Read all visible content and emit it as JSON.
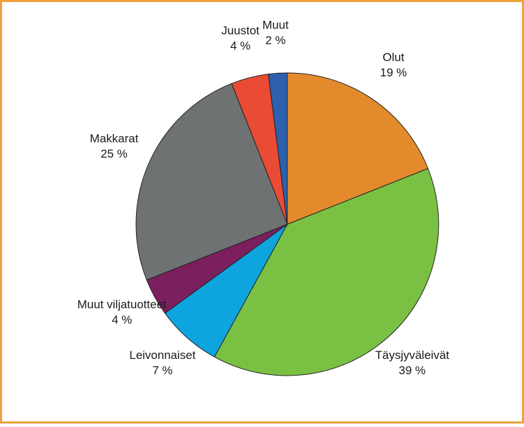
{
  "chart_data": {
    "type": "pie",
    "categories": [
      "Olut",
      "Täysjyväleivät",
      "Leivonnaiset",
      "Muut viljatuotteet",
      "Makkarat",
      "Juustot",
      "Muut"
    ],
    "values": [
      19,
      39,
      7,
      4,
      25,
      4,
      2
    ],
    "value_labels": [
      "19 %",
      "39 %",
      "7 %",
      "4 %",
      "25 %",
      "4 %",
      "2 %"
    ],
    "colors": [
      "#e38b2c",
      "#7ac143",
      "#0ea5de",
      "#7b1f5e",
      "#6f7272",
      "#e94b35",
      "#2d61ad"
    ]
  }
}
